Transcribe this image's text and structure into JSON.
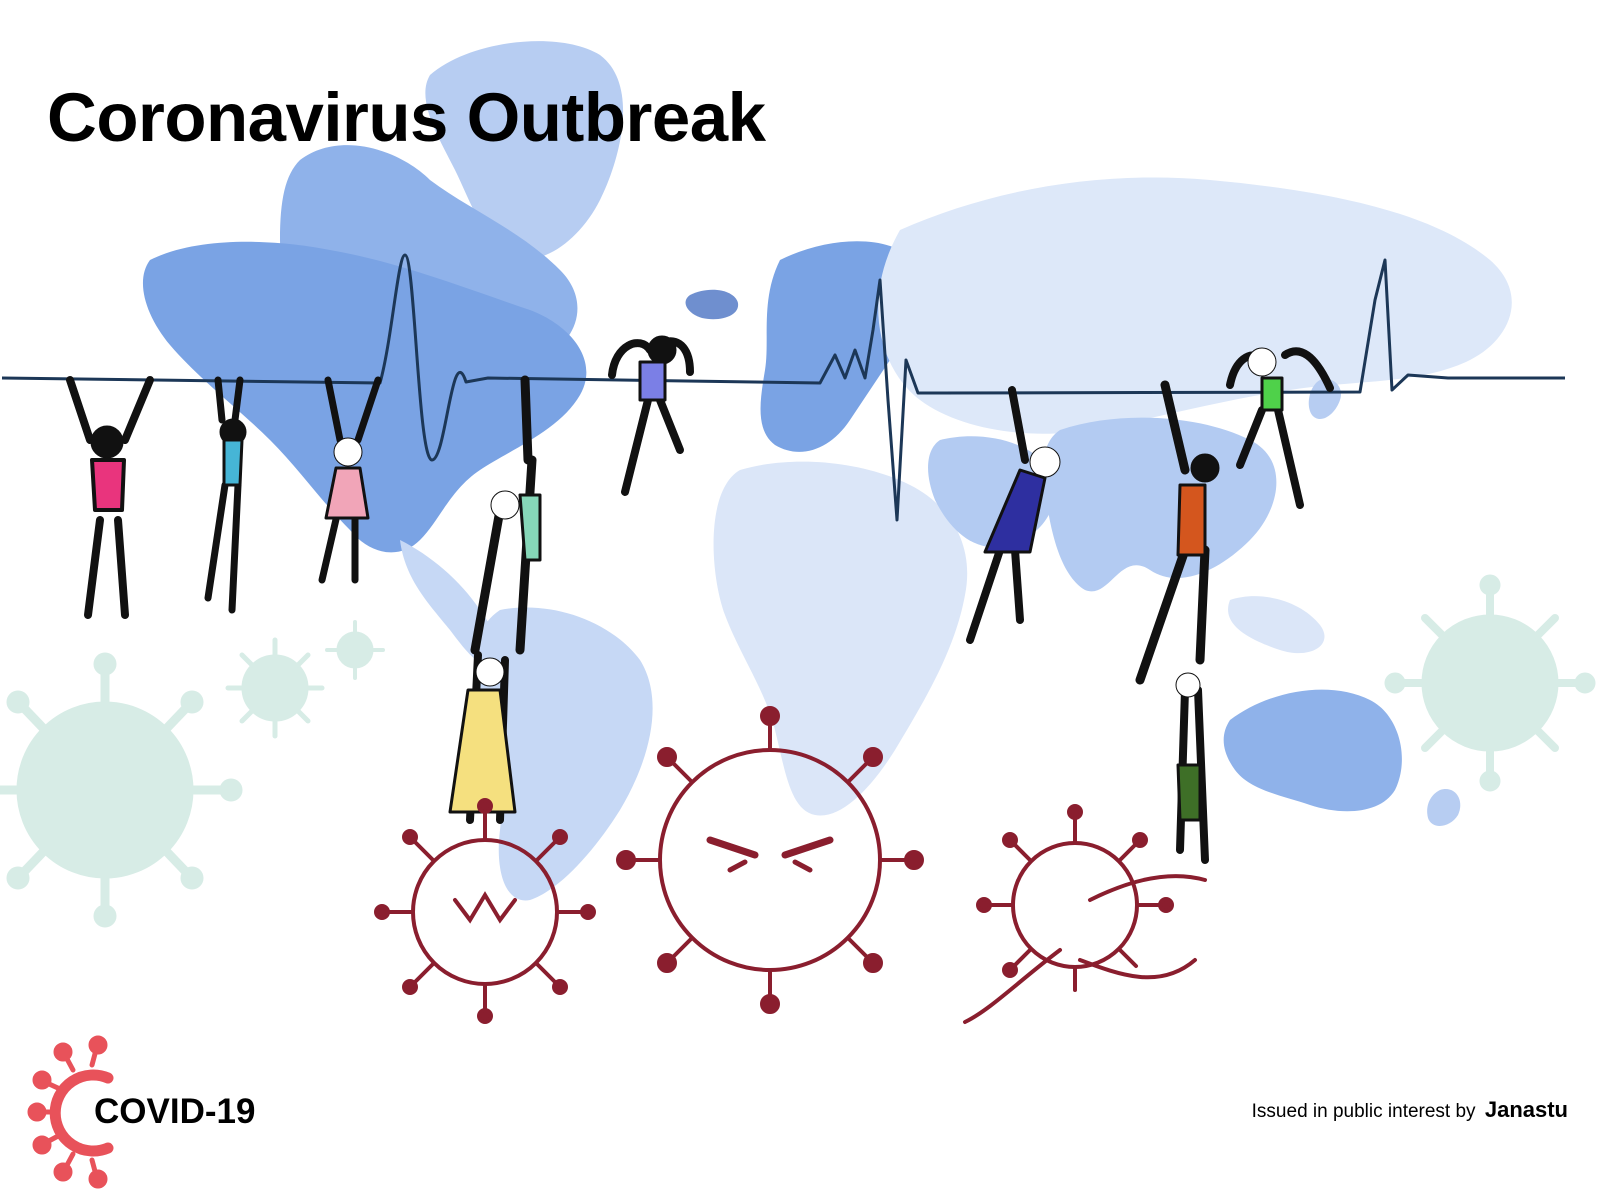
{
  "poster": {
    "title": "Coronavirus Outbreak",
    "logo_text": "COVID-19",
    "credit_prefix": "Issued in public interest by",
    "credit_org": "Janastu"
  },
  "colors": {
    "map_light": "#dbe6f8",
    "map_mid": "#a9c3ef",
    "map_dark": "#6f9be0",
    "virus_outline": "#8a1e2e",
    "virus_faded": "#d7ece6",
    "logo_red": "#e8525a"
  },
  "icons": [
    "world-map-icon",
    "heartbeat-line-icon",
    "hanging-person-icon",
    "virus-icon",
    "covid-logo-icon"
  ]
}
